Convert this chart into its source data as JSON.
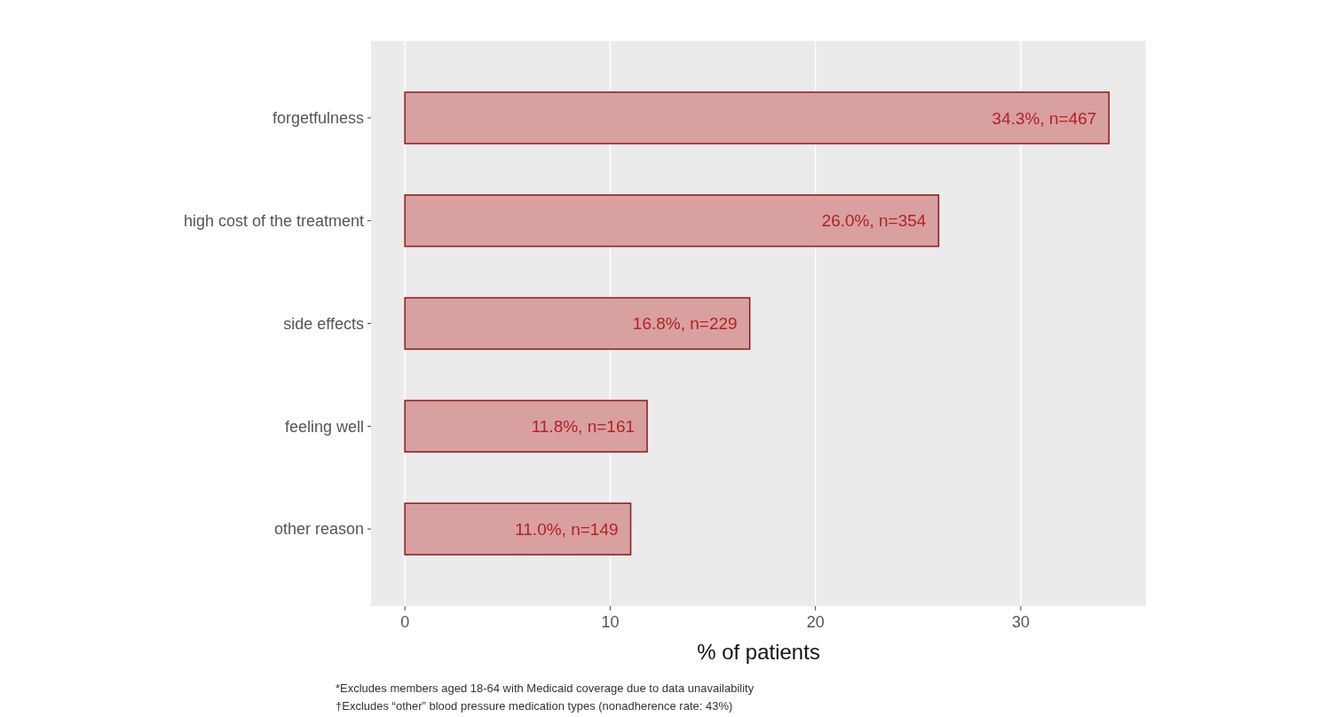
{
  "chart_data": {
    "type": "bar",
    "orientation": "horizontal",
    "xlabel": "% of patients",
    "categories": [
      "forgetfulness",
      "high cost of the treatment",
      "side effects",
      "feeling well",
      "other reason"
    ],
    "values": [
      34.3,
      26.0,
      16.8,
      11.8,
      11.0
    ],
    "value_labels": [
      "34.3%, n=467",
      "26.0%, n=354",
      "16.8%, n=229",
      "11.8%, n=161",
      "11.0%, n=149"
    ],
    "color": "#d9a0a0",
    "xlim": [
      -1.65,
      36.1
    ],
    "xticks": [
      0,
      10,
      20,
      30
    ],
    "grid": "x",
    "annotations": [
      "*Excludes members aged 18-64 with Medicaid coverage due to data unavailability",
      "†Excludes “other” blood pressure medication types (nonadherence rate: 43%)"
    ]
  }
}
